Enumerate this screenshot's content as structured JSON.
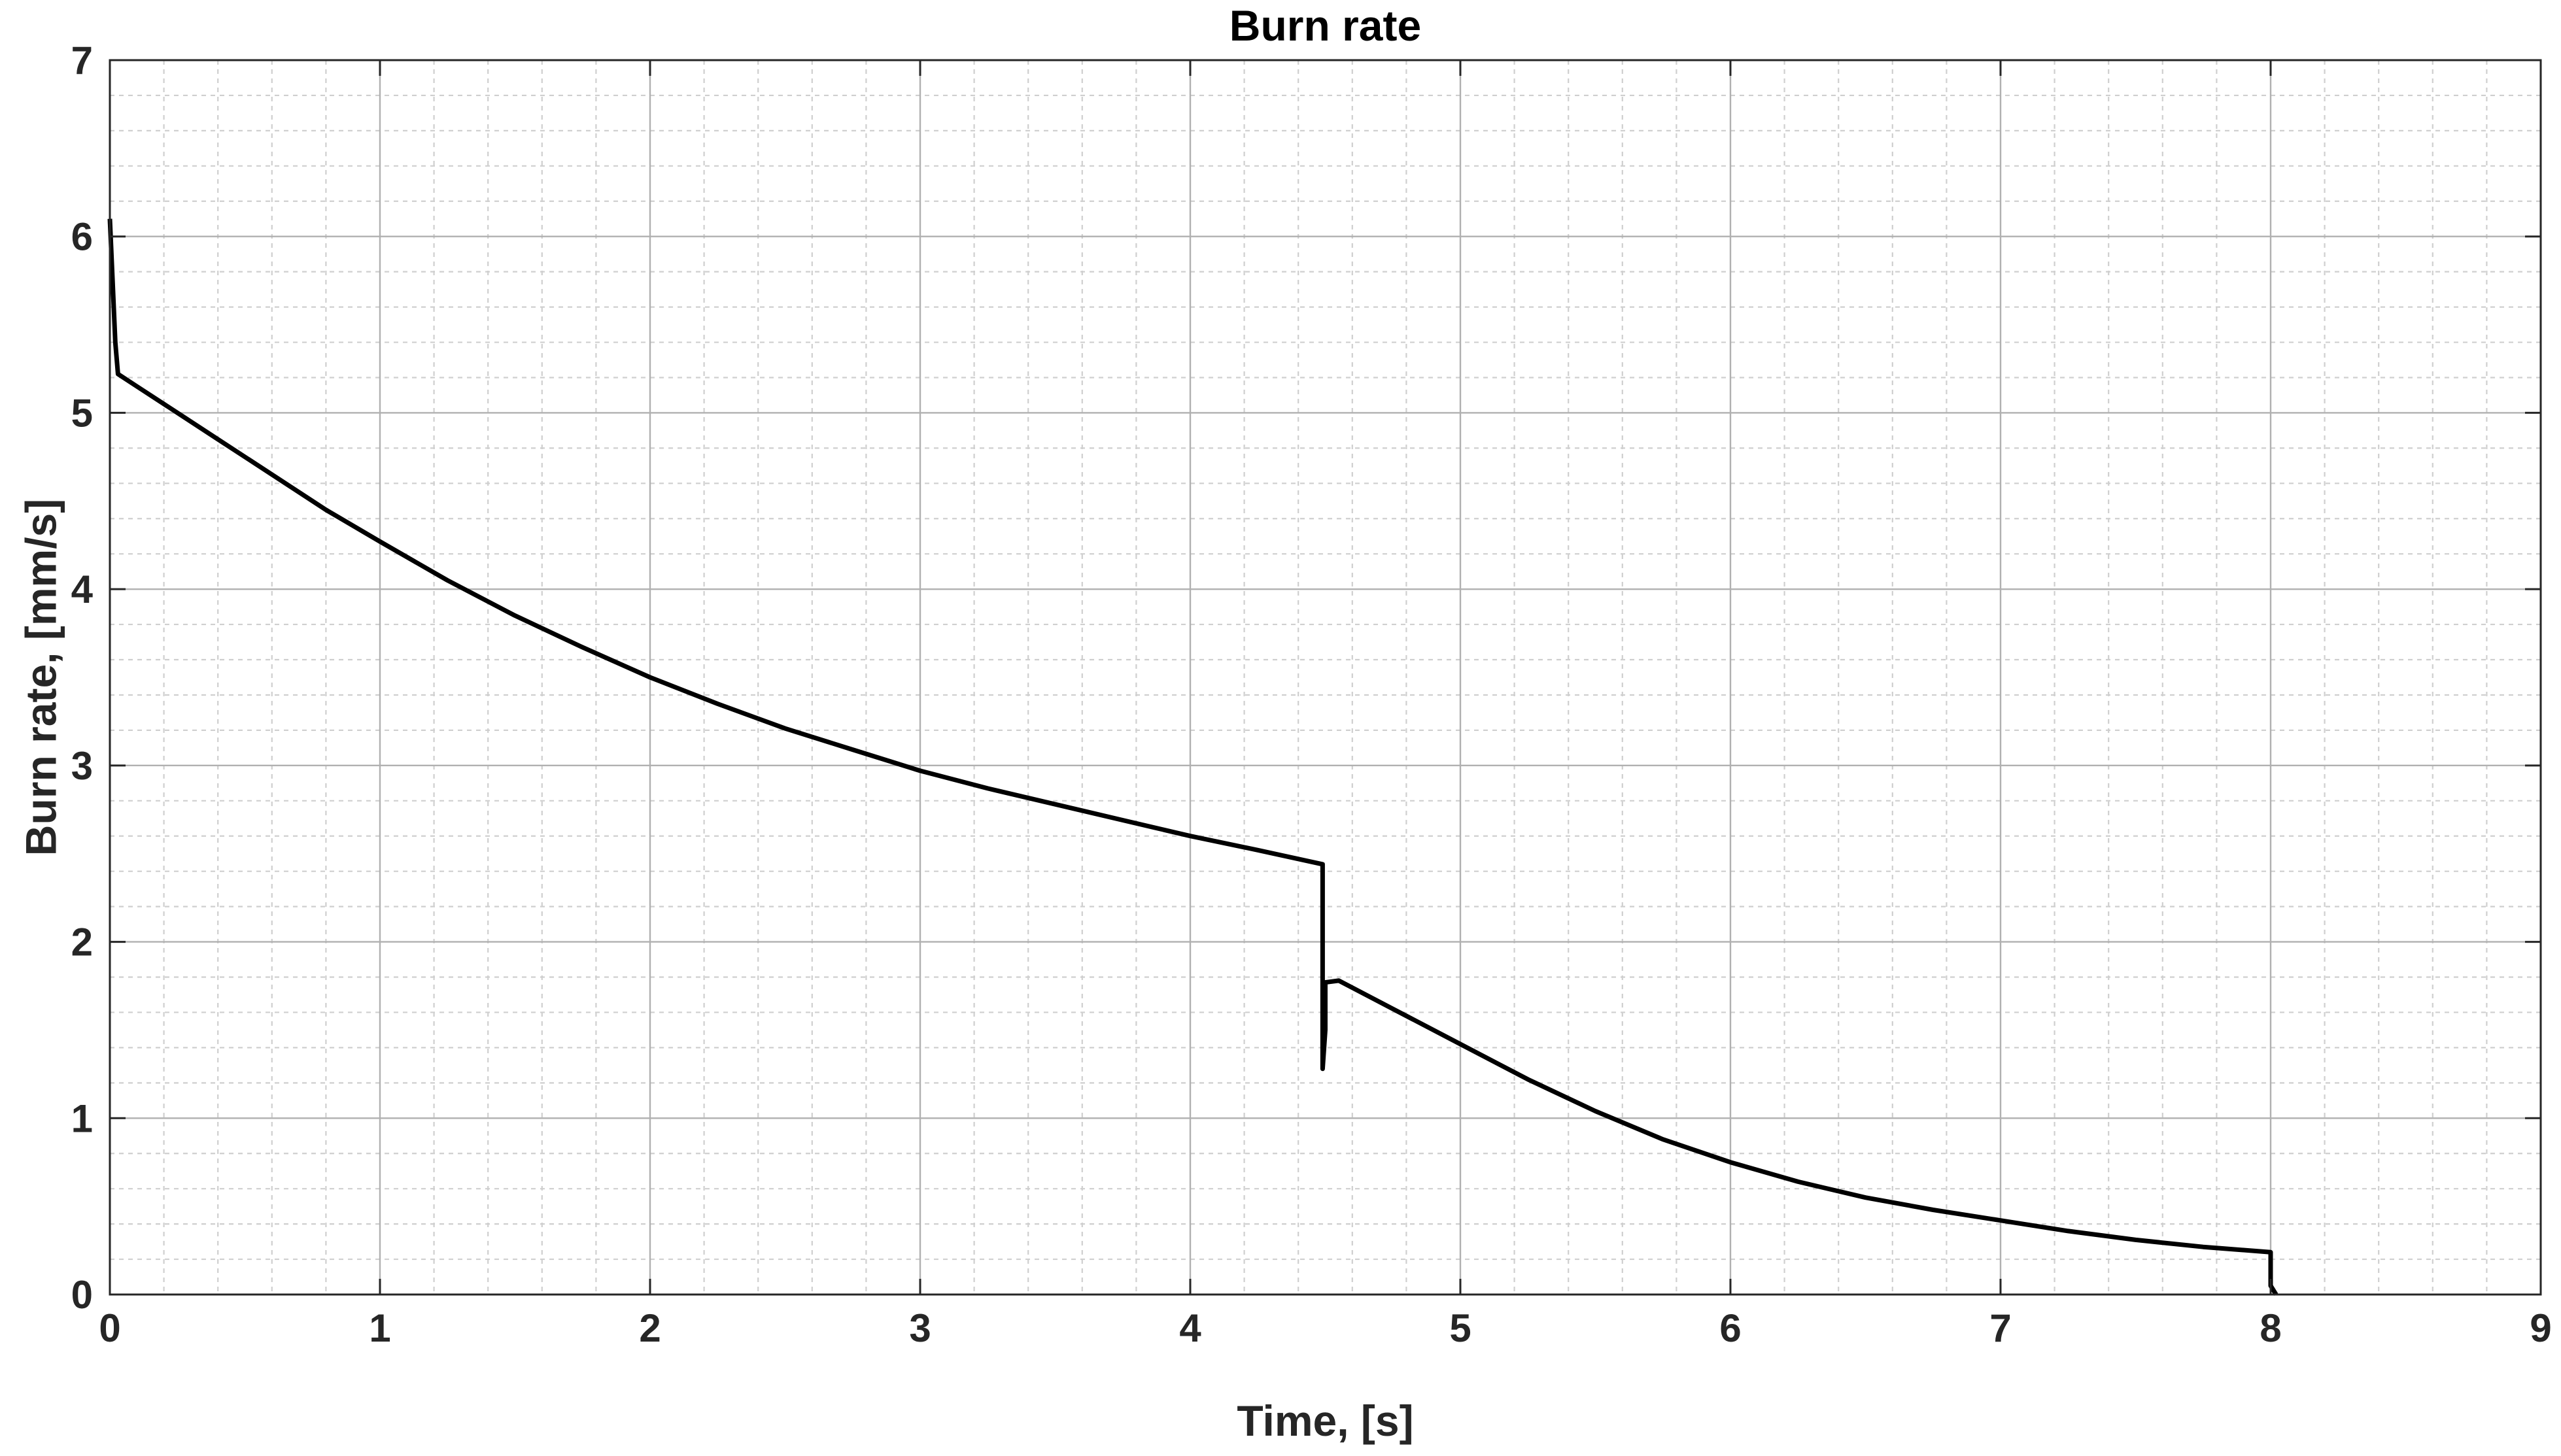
{
  "chart_data": {
    "type": "line",
    "title": "Burn rate",
    "xlabel": "Time, [s]",
    "ylabel": "Burn rate, [mm/s]",
    "xlim": [
      0,
      9
    ],
    "ylim": [
      0,
      7
    ],
    "xticks": [
      "0",
      "1",
      "2",
      "3",
      "4",
      "5",
      "6",
      "7",
      "8",
      "9"
    ],
    "yticks": [
      "0",
      "1",
      "2",
      "3",
      "4",
      "5",
      "6",
      "7"
    ],
    "grid": true,
    "minor_grid": true,
    "legend": "none",
    "colors": {
      "line": "#000000",
      "major_grid": "#b0b0b0",
      "minor_grid": "#cfcfcf",
      "axes": "#262626"
    },
    "series": [
      {
        "x": [
          0.0,
          0.02,
          0.03,
          0.1,
          0.2,
          0.4,
          0.6,
          0.8,
          1.0,
          1.25,
          1.5,
          1.75,
          2.0,
          2.25,
          2.5,
          2.75,
          3.0,
          3.25,
          3.5,
          3.75,
          4.0,
          4.25,
          4.49,
          4.49,
          4.49,
          4.5,
          4.5,
          4.55,
          4.75,
          5.0,
          5.25,
          5.5,
          5.75,
          6.0,
          6.25,
          6.5,
          6.75,
          7.0,
          7.25,
          7.5,
          7.75,
          8.0,
          8.0,
          8.02
        ],
        "y": [
          6.1,
          5.4,
          5.22,
          5.15,
          5.05,
          4.85,
          4.65,
          4.45,
          4.27,
          4.05,
          3.85,
          3.67,
          3.5,
          3.35,
          3.21,
          3.09,
          2.97,
          2.87,
          2.78,
          2.69,
          2.6,
          2.52,
          2.44,
          1.6,
          1.28,
          1.5,
          1.77,
          1.78,
          1.62,
          1.42,
          1.22,
          1.04,
          0.88,
          0.75,
          0.64,
          0.55,
          0.48,
          0.42,
          0.36,
          0.31,
          0.27,
          0.24,
          0.05,
          0.0
        ]
      }
    ]
  }
}
